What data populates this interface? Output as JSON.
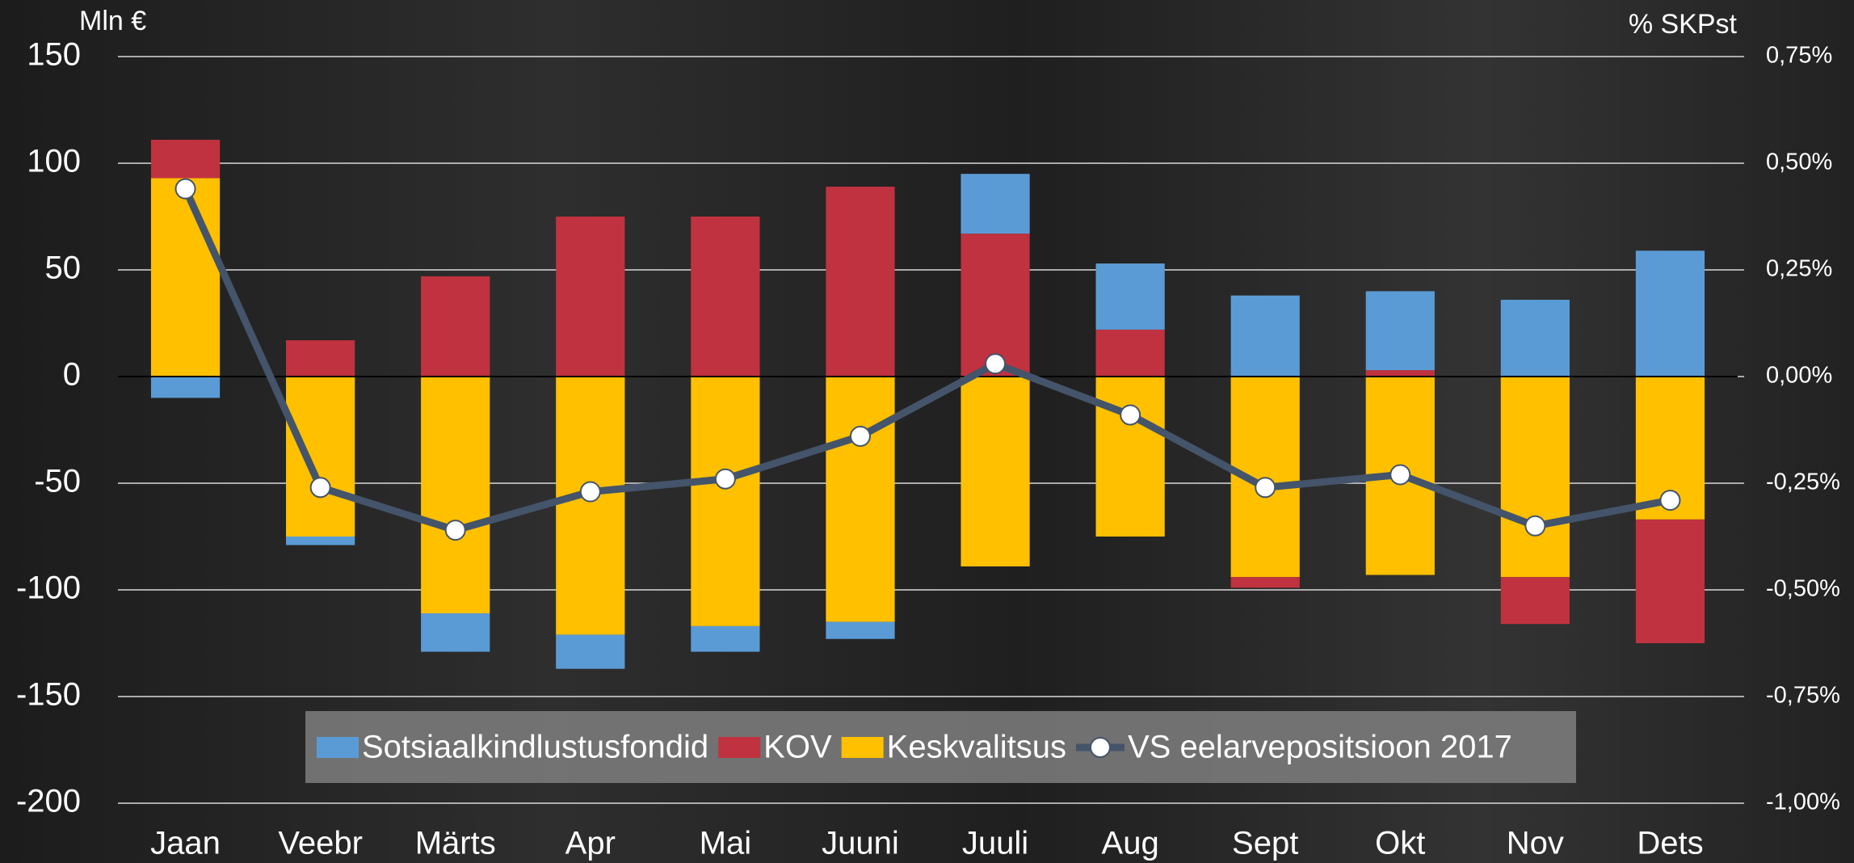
{
  "chart_data": {
    "type": "bar",
    "y_label": "Mln €",
    "y2_label": "% SKPst",
    "categories": [
      "Jaan",
      "Veebr",
      "Märts",
      "Apr",
      "Mai",
      "Juuni",
      "Juuli",
      "Aug",
      "Sept",
      "Okt",
      "Nov",
      "Dets"
    ],
    "series": [
      {
        "name": "Sotsiaalkindlustusfondid",
        "color": "#5b9bd5",
        "values": [
          -10,
          -4,
          -18,
          -16,
          -12,
          -8,
          28,
          31,
          38,
          37,
          36,
          59
        ]
      },
      {
        "name": "KOV",
        "color": "#c0323f",
        "values": [
          18,
          17,
          47,
          75,
          75,
          89,
          67,
          22,
          -5,
          3,
          -22,
          -58
        ]
      },
      {
        "name": "Keskvalitsus",
        "color": "#ffc000",
        "values": [
          93,
          -75,
          -111,
          -121,
          -117,
          -115,
          -89,
          -75,
          -94,
          -93,
          -94,
          -67
        ]
      },
      {
        "name": "VS eelarvepositsioon 2017",
        "type": "line",
        "axis": "y2",
        "color": "#44546a",
        "values": [
          0.44,
          -0.26,
          -0.36,
          -0.27,
          -0.24,
          -0.14,
          0.03,
          -0.09,
          -0.26,
          -0.23,
          -0.35,
          -0.29
        ]
      }
    ],
    "ylim": [
      -200,
      150
    ],
    "yticks": [
      150,
      100,
      50,
      0,
      -50,
      -100,
      -150,
      -200
    ],
    "y2lim": [
      -1,
      0.75
    ],
    "y2ticks": [
      {
        "value": 0.75,
        "label": "0,75%"
      },
      {
        "value": 0.5,
        "label": "0,50%"
      },
      {
        "value": 0.25,
        "label": "0,25%"
      },
      {
        "value": 0,
        "label": "0,00%"
      },
      {
        "value": -0.25,
        "label": "-0,25%"
      },
      {
        "value": -0.5,
        "label": "-0,50%"
      },
      {
        "value": -0.75,
        "label": "-0,75%"
      },
      {
        "value": -1,
        "label": "-1,00%"
      }
    ],
    "grid": true,
    "stacked": true
  }
}
